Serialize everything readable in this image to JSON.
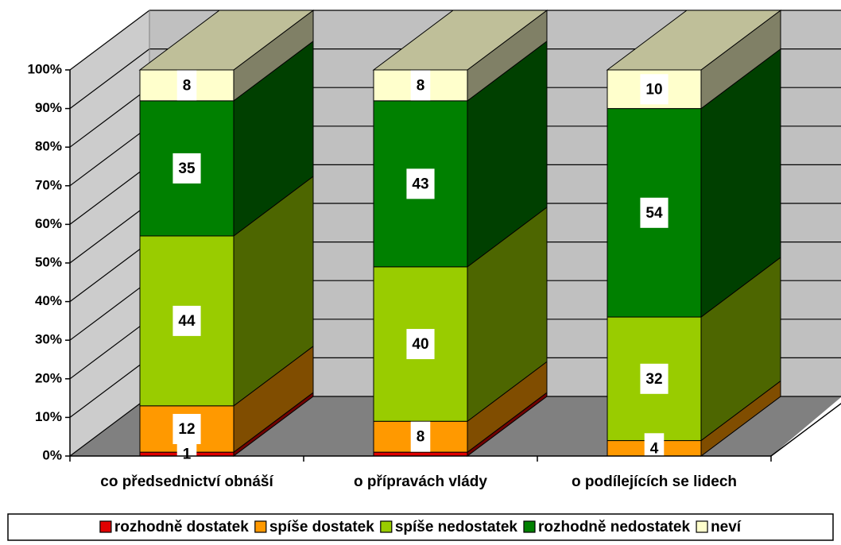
{
  "chart_data": {
    "type": "bar3d_stacked",
    "categories": [
      "co předsednictví obnáší",
      "o přípravách vlády",
      "o podílejících se lidech"
    ],
    "series": [
      {
        "name": "rozhodně dostatek",
        "color": "#e00000",
        "values": [
          1,
          1,
          0
        ],
        "value_labels": [
          "1",
          null,
          null
        ]
      },
      {
        "name": "spíše dostatek",
        "color": "#ff9900",
        "values": [
          12,
          8,
          4
        ]
      },
      {
        "name": "spíše nedostatek",
        "color": "#99cc00",
        "values": [
          44,
          40,
          32
        ]
      },
      {
        "name": "rozhodně nedostatek",
        "color": "#008000",
        "values": [
          35,
          43,
          54
        ]
      },
      {
        "name": "neví",
        "color": "#ffffcc",
        "values": [
          8,
          8,
          10
        ]
      }
    ],
    "ylim": [
      0,
      100
    ],
    "yticks": [
      {
        "value": 0,
        "label": "0%"
      },
      {
        "value": 10,
        "label": "10%"
      },
      {
        "value": 20,
        "label": "20%"
      },
      {
        "value": 30,
        "label": "30%"
      },
      {
        "value": 40,
        "label": "40%"
      },
      {
        "value": 50,
        "label": "50%"
      },
      {
        "value": 60,
        "label": "60%"
      },
      {
        "value": 70,
        "label": "70%"
      },
      {
        "value": 80,
        "label": "80%"
      },
      {
        "value": 90,
        "label": "90%"
      },
      {
        "value": 100,
        "label": "100%"
      }
    ],
    "grid": true,
    "legend": "bottom"
  }
}
